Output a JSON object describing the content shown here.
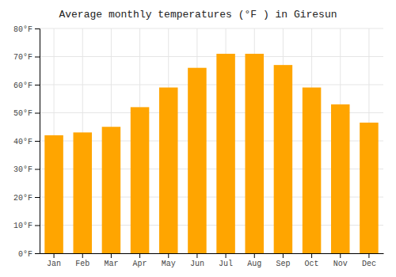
{
  "chart_data": {
    "type": "bar",
    "title": "Average monthly temperatures (°F ) in Giresun",
    "categories": [
      "Jan",
      "Feb",
      "Mar",
      "Apr",
      "May",
      "Jun",
      "Jul",
      "Aug",
      "Sep",
      "Oct",
      "Nov",
      "Dec"
    ],
    "values": [
      42,
      43,
      45,
      52,
      59,
      66,
      71,
      71,
      67,
      59,
      53,
      46.5
    ],
    "color": "#FFA500",
    "ylim": [
      0,
      80
    ],
    "yticks": [
      {
        "value": 0,
        "label": "0°F"
      },
      {
        "value": 10,
        "label": "10°F"
      },
      {
        "value": 20,
        "label": "20°F"
      },
      {
        "value": 30,
        "label": "30°F"
      },
      {
        "value": 40,
        "label": "40°F"
      },
      {
        "value": 50,
        "label": "50°F"
      },
      {
        "value": 60,
        "label": "60°F"
      },
      {
        "value": 70,
        "label": "70°F"
      },
      {
        "value": 80,
        "label": "80°F"
      }
    ],
    "grid": true
  }
}
